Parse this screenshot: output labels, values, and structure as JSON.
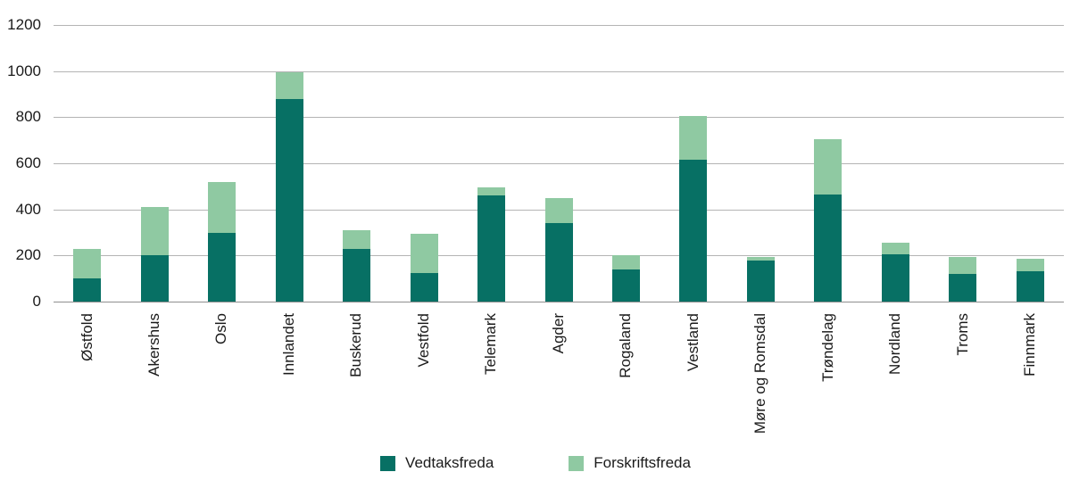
{
  "chart_data": {
    "type": "bar",
    "stacked": true,
    "title": "",
    "xlabel": "",
    "ylabel": "",
    "categories": [
      "Østfold",
      "Akershus",
      "Oslo",
      "Innlandet",
      "Buskerud",
      "Vestfold",
      "Telemark",
      "Agder",
      "Rogaland",
      "Vestland",
      "Møre og Romsdal",
      "Trøndelag",
      "Nordland",
      "Troms",
      "Finnmark"
    ],
    "series": [
      {
        "name": "Vedtaksfreda",
        "color": "#077064",
        "values": [
          100,
          200,
          300,
          880,
          230,
          125,
          460,
          340,
          140,
          615,
          180,
          465,
          205,
          120,
          130
        ]
      },
      {
        "name": "Forskriftsfreda",
        "color": "#8fc9a2",
        "values": [
          130,
          210,
          220,
          115,
          80,
          170,
          35,
          110,
          60,
          190,
          15,
          240,
          50,
          75,
          55
        ]
      }
    ],
    "ylim": [
      0,
      1200
    ],
    "yticks": [
      0,
      200,
      400,
      600,
      800,
      1000,
      1200
    ],
    "ytick_interval": 200,
    "grid": true,
    "grid_color": "#b4b4b4",
    "axis_line_color": "#8f8f8f",
    "legend_position": "bottom",
    "x_label_rotation": -90
  }
}
